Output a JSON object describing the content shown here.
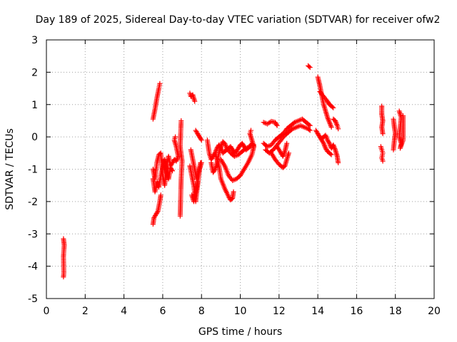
{
  "chart_data": {
    "type": "scatter",
    "title": "Day 189 of 2025, Sidereal Day-to-day VTEC variation (SDTVAR) for receiver ofw2",
    "xlabel": "GPS time / hours",
    "ylabel": "SDTVAR / TECUs",
    "xlim": [
      0,
      20
    ],
    "ylim": [
      -5,
      3
    ],
    "xticks": [
      0,
      2,
      4,
      6,
      8,
      10,
      12,
      14,
      16,
      18,
      20
    ],
    "yticks": [
      -5,
      -4,
      -3,
      -2,
      -1,
      0,
      1,
      2,
      3
    ],
    "xtick_labels": [
      "0",
      "2",
      "4",
      "6",
      "8",
      "10",
      "12",
      "14",
      "16",
      "18",
      "20"
    ],
    "ytick_labels": [
      "-5",
      "-4",
      "-3",
      "-2",
      "-1",
      "0",
      "1",
      "2",
      "3"
    ],
    "grid": true,
    "marker": "+",
    "color": "#ff0000",
    "series": [
      {
        "name": "SDTVAR",
        "segments": [
          [
            [
              0.88,
              -3.15
            ],
            [
              0.92,
              -3.35
            ],
            [
              0.88,
              -3.7
            ],
            [
              0.9,
              -4.2
            ],
            [
              0.88,
              -4.33
            ]
          ],
          [
            [
              5.5,
              0.55
            ],
            [
              5.6,
              0.85
            ],
            [
              5.7,
              1.2
            ],
            [
              5.8,
              1.5
            ],
            [
              5.85,
              1.65
            ]
          ],
          [
            [
              5.5,
              -2.7
            ],
            [
              5.55,
              -2.5
            ],
            [
              5.65,
              -2.4
            ],
            [
              5.75,
              -2.3
            ],
            [
              5.85,
              -2.0
            ],
            [
              5.9,
              -1.8
            ]
          ],
          [
            [
              5.5,
              -1.0
            ],
            [
              5.6,
              -1.3
            ],
            [
              5.7,
              -0.8
            ],
            [
              5.8,
              -0.55
            ],
            [
              5.9,
              -0.5
            ],
            [
              6.0,
              -1.2
            ],
            [
              6.1,
              -1.5
            ],
            [
              6.2,
              -0.9
            ],
            [
              6.3,
              -0.6
            ],
            [
              6.4,
              -0.9
            ],
            [
              6.5,
              -0.8
            ],
            [
              6.6,
              -0.7
            ],
            [
              6.7,
              -0.75
            ],
            [
              6.8,
              -0.6
            ],
            [
              6.7,
              -0.3
            ],
            [
              6.6,
              -0.1
            ],
            [
              6.65,
              0.0
            ]
          ],
          [
            [
              5.5,
              -1.3
            ],
            [
              5.6,
              -1.7
            ],
            [
              5.7,
              -1.4
            ],
            [
              5.8,
              -1.55
            ],
            [
              5.9,
              -1.2
            ],
            [
              6.0,
              -0.95
            ],
            [
              6.1,
              -0.7
            ],
            [
              6.2,
              -1.1
            ],
            [
              6.3,
              -1.3
            ],
            [
              6.4,
              -0.95
            ],
            [
              6.5,
              -1.05
            ]
          ],
          [
            [
              6.95,
              0.5
            ],
            [
              6.9,
              -0.3
            ],
            [
              7.0,
              -0.75
            ],
            [
              6.95,
              -1.3
            ],
            [
              6.9,
              -2.45
            ]
          ],
          [
            [
              7.4,
              1.35
            ],
            [
              7.45,
              1.25
            ],
            [
              7.55,
              1.3
            ],
            [
              7.65,
              1.1
            ]
          ],
          [
            [
              7.4,
              -0.9
            ],
            [
              7.5,
              -1.2
            ],
            [
              7.6,
              -1.5
            ],
            [
              7.7,
              -2.0
            ],
            [
              7.8,
              -1.5
            ],
            [
              7.9,
              -1.0
            ],
            [
              8.0,
              -0.8
            ]
          ],
          [
            [
              7.45,
              -0.4
            ],
            [
              7.55,
              -0.7
            ],
            [
              7.65,
              -1.0
            ],
            [
              7.75,
              -1.3
            ],
            [
              7.85,
              -1.1
            ],
            [
              7.95,
              -0.8
            ]
          ],
          [
            [
              7.7,
              0.2
            ],
            [
              7.8,
              0.1
            ],
            [
              7.9,
              0.0
            ],
            [
              8.0,
              -0.1
            ]
          ],
          [
            [
              7.5,
              -1.8
            ],
            [
              7.6,
              -2.0
            ],
            [
              7.7,
              -1.7
            ],
            [
              7.8,
              -1.4
            ]
          ],
          [
            [
              8.3,
              -0.1
            ],
            [
              8.4,
              -0.5
            ],
            [
              8.5,
              -0.7
            ],
            [
              8.6,
              -0.6
            ],
            [
              8.7,
              -0.5
            ],
            [
              8.8,
              -0.35
            ],
            [
              8.9,
              -0.25
            ],
            [
              9.0,
              -0.35
            ],
            [
              9.1,
              -0.5
            ],
            [
              9.2,
              -0.45
            ],
            [
              9.3,
              -0.4
            ],
            [
              9.4,
              -0.35
            ],
            [
              9.5,
              -0.3
            ],
            [
              9.6,
              -0.4
            ],
            [
              9.7,
              -0.5
            ],
            [
              9.8,
              -0.45
            ],
            [
              9.9,
              -0.35
            ],
            [
              10.0,
              -0.25
            ],
            [
              10.1,
              -0.2
            ],
            [
              10.2,
              -0.3
            ],
            [
              10.3,
              -0.4
            ],
            [
              10.4,
              -0.35
            ],
            [
              10.5,
              -0.3
            ],
            [
              10.6,
              -0.2
            ],
            [
              10.7,
              -0.3
            ]
          ],
          [
            [
              8.5,
              -0.8
            ],
            [
              8.6,
              -1.1
            ],
            [
              8.7,
              -1.0
            ],
            [
              8.8,
              -0.8
            ],
            [
              8.9,
              -0.5
            ],
            [
              9.0,
              -0.3
            ],
            [
              9.1,
              -0.15
            ],
            [
              9.2,
              -0.2
            ],
            [
              9.3,
              -0.35
            ],
            [
              9.5,
              -0.5
            ],
            [
              9.7,
              -0.6
            ],
            [
              9.9,
              -0.55
            ],
            [
              10.1,
              -0.45
            ],
            [
              10.3,
              -0.35
            ],
            [
              10.5,
              -0.3
            ],
            [
              10.7,
              -0.25
            ]
          ],
          [
            [
              8.7,
              -0.5
            ],
            [
              8.9,
              -0.9
            ],
            [
              9.0,
              -1.3
            ],
            [
              9.2,
              -1.6
            ],
            [
              9.4,
              -1.85
            ],
            [
              9.5,
              -1.95
            ],
            [
              9.6,
              -1.9
            ],
            [
              9.65,
              -1.7
            ]
          ],
          [
            [
              9.0,
              -0.7
            ],
            [
              9.2,
              -0.9
            ],
            [
              9.4,
              -1.2
            ],
            [
              9.6,
              -1.35
            ],
            [
              9.8,
              -1.3
            ],
            [
              10.0,
              -1.2
            ],
            [
              10.2,
              -1.0
            ],
            [
              10.4,
              -0.8
            ],
            [
              10.6,
              -0.55
            ],
            [
              10.7,
              -0.3
            ],
            [
              10.6,
              -0.1
            ],
            [
              10.5,
              0.1
            ],
            [
              10.55,
              0.2
            ]
          ],
          [
            [
              11.2,
              0.45
            ],
            [
              11.4,
              0.4
            ],
            [
              11.6,
              0.48
            ],
            [
              11.8,
              0.45
            ],
            [
              11.9,
              0.35
            ]
          ],
          [
            [
              11.2,
              -0.2
            ],
            [
              11.4,
              -0.3
            ],
            [
              11.6,
              -0.25
            ],
            [
              11.8,
              -0.1
            ],
            [
              12.0,
              0.0
            ],
            [
              12.2,
              0.1
            ],
            [
              12.4,
              0.25
            ],
            [
              12.6,
              0.35
            ],
            [
              12.8,
              0.45
            ],
            [
              13.0,
              0.5
            ],
            [
              13.2,
              0.55
            ],
            [
              13.4,
              0.45
            ],
            [
              13.6,
              0.35
            ]
          ],
          [
            [
              11.3,
              -0.4
            ],
            [
              11.5,
              -0.5
            ],
            [
              11.7,
              -0.4
            ],
            [
              11.9,
              -0.25
            ],
            [
              12.1,
              -0.1
            ],
            [
              12.3,
              0.05
            ],
            [
              12.5,
              0.15
            ],
            [
              12.7,
              0.25
            ],
            [
              12.9,
              0.3
            ],
            [
              13.1,
              0.35
            ],
            [
              13.3,
              0.3
            ],
            [
              13.5,
              0.25
            ],
            [
              13.6,
              0.2
            ]
          ],
          [
            [
              11.6,
              -0.5
            ],
            [
              11.8,
              -0.7
            ],
            [
              12.0,
              -0.85
            ],
            [
              12.2,
              -0.95
            ],
            [
              12.3,
              -0.9
            ],
            [
              12.4,
              -0.7
            ],
            [
              12.5,
              -0.5
            ]
          ],
          [
            [
              11.9,
              -0.3
            ],
            [
              12.1,
              -0.5
            ],
            [
              12.2,
              -0.6
            ],
            [
              12.3,
              -0.45
            ],
            [
              12.4,
              -0.2
            ]
          ],
          [
            [
              13.5,
              2.2
            ],
            [
              13.6,
              2.15
            ]
          ],
          [
            [
              14.0,
              1.85
            ],
            [
              14.1,
              1.6
            ],
            [
              14.2,
              1.3
            ],
            [
              14.3,
              1.0
            ],
            [
              14.4,
              0.8
            ],
            [
              14.5,
              0.6
            ],
            [
              14.6,
              0.45
            ],
            [
              14.7,
              0.3
            ]
          ],
          [
            [
              14.1,
              1.4
            ],
            [
              14.3,
              1.25
            ],
            [
              14.5,
              1.1
            ],
            [
              14.6,
              1.0
            ],
            [
              14.7,
              0.95
            ],
            [
              14.8,
              0.9
            ]
          ],
          [
            [
              13.9,
              0.2
            ],
            [
              14.0,
              0.1
            ],
            [
              14.1,
              0.0
            ],
            [
              14.2,
              -0.1
            ],
            [
              14.3,
              -0.2
            ],
            [
              14.4,
              -0.35
            ],
            [
              14.5,
              -0.45
            ],
            [
              14.6,
              -0.5
            ],
            [
              14.7,
              -0.55
            ]
          ],
          [
            [
              14.2,
              -0.05
            ],
            [
              14.4,
              0.05
            ],
            [
              14.5,
              -0.1
            ],
            [
              14.6,
              -0.2
            ],
            [
              14.7,
              -0.35
            ],
            [
              14.8,
              -0.25
            ],
            [
              14.9,
              -0.4
            ],
            [
              15.0,
              -0.6
            ],
            [
              15.05,
              -0.8
            ]
          ],
          [
            [
              14.8,
              0.55
            ],
            [
              14.9,
              0.5
            ],
            [
              15.0,
              0.35
            ],
            [
              15.05,
              0.25
            ]
          ],
          [
            [
              17.3,
              0.95
            ],
            [
              17.3,
              0.7
            ],
            [
              17.35,
              0.5
            ],
            [
              17.3,
              0.3
            ],
            [
              17.35,
              0.1
            ]
          ],
          [
            [
              17.25,
              -0.3
            ],
            [
              17.3,
              -0.4
            ],
            [
              17.35,
              -0.5
            ],
            [
              17.3,
              -0.65
            ],
            [
              17.35,
              -0.75
            ]
          ],
          [
            [
              17.9,
              0.55
            ],
            [
              17.95,
              0.3
            ],
            [
              18.0,
              0.1
            ],
            [
              17.95,
              -0.1
            ],
            [
              17.9,
              -0.4
            ]
          ],
          [
            [
              18.2,
              0.8
            ],
            [
              18.3,
              0.6
            ],
            [
              18.2,
              0.0
            ],
            [
              18.3,
              -0.2
            ],
            [
              18.25,
              -0.35
            ],
            [
              18.4,
              -0.1
            ],
            [
              18.4,
              0.65
            ]
          ]
        ]
      }
    ]
  }
}
